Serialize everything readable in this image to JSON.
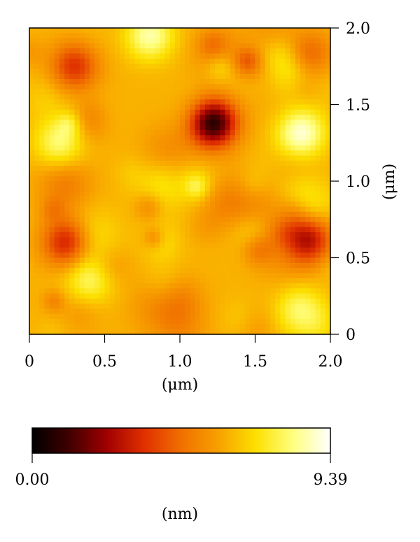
{
  "chart_data": {
    "type": "heatmap",
    "title": "",
    "x_axis": {
      "label": "(μm)",
      "range": [
        0,
        2.0
      ],
      "ticks": [
        0,
        0.5,
        1.0,
        1.5,
        2.0
      ],
      "tick_labels": [
        "0",
        "0.5",
        "1.0",
        "1.5",
        "2.0"
      ]
    },
    "y_axis": {
      "label": "(μm)",
      "position": "right",
      "range": [
        0,
        2.0
      ],
      "ticks": [
        0,
        0.5,
        1.0,
        1.5,
        2.0
      ],
      "tick_labels": [
        "0",
        "0.5",
        "1.0",
        "1.5",
        "2.0"
      ]
    },
    "colorbar": {
      "label": "(nm)",
      "min": 0.0,
      "max": 9.39,
      "min_label": "0.00",
      "max_label": "9.39",
      "colormap": [
        "#000000",
        "#400000",
        "#a00000",
        "#e03000",
        "#f07000",
        "#f8a000",
        "#fce000",
        "#ffff80",
        "#ffffff"
      ]
    },
    "z_features": [
      {
        "x": 1.22,
        "y": 1.38,
        "z": 0.6
      },
      {
        "x": 0.25,
        "y": 0.6,
        "z": 2.8
      },
      {
        "x": 1.85,
        "y": 0.62,
        "z": 2.8
      },
      {
        "x": 0.3,
        "y": 1.75,
        "z": 3.5
      },
      {
        "x": 1.85,
        "y": 1.82,
        "z": 3.8
      },
      {
        "x": 0.2,
        "y": 1.25,
        "z": 8.2
      },
      {
        "x": 1.8,
        "y": 1.3,
        "z": 8.8
      },
      {
        "x": 0.8,
        "y": 1.95,
        "z": 8.6
      },
      {
        "x": 0.4,
        "y": 0.35,
        "z": 8.0
      },
      {
        "x": 1.8,
        "y": 0.15,
        "z": 8.2
      }
    ]
  }
}
